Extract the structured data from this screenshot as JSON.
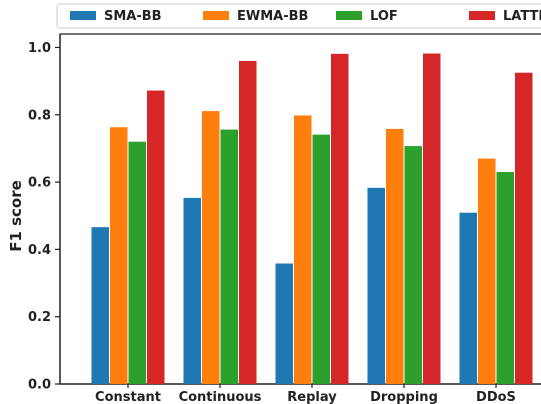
{
  "chart_data": {
    "type": "bar",
    "categories": [
      "Constant",
      "Continuous",
      "Replay",
      "Dropping",
      "DDoS"
    ],
    "series": [
      {
        "name": "SMA-BB",
        "color": "#1f77b4",
        "values": [
          0.466,
          0.553,
          0.358,
          0.583,
          0.509
        ]
      },
      {
        "name": "EWMA-BB",
        "color": "#ff7f0e",
        "values": [
          0.763,
          0.811,
          0.798,
          0.758,
          0.67
        ]
      },
      {
        "name": "LOF",
        "color": "#2ca02c",
        "values": [
          0.72,
          0.756,
          0.741,
          0.707,
          0.63
        ]
      },
      {
        "name": "LATTE",
        "color": "#d62728",
        "values": [
          0.872,
          0.96,
          0.981,
          0.982,
          0.925
        ]
      }
    ],
    "ylabel": "F1 score",
    "xlabel": "",
    "ylim": [
      0.0,
      1.04
    ],
    "yticks": [
      "0.0",
      "0.2",
      "0.4",
      "0.6",
      "0.8",
      "1.0"
    ],
    "legend_position": "top",
    "grid": false
  }
}
